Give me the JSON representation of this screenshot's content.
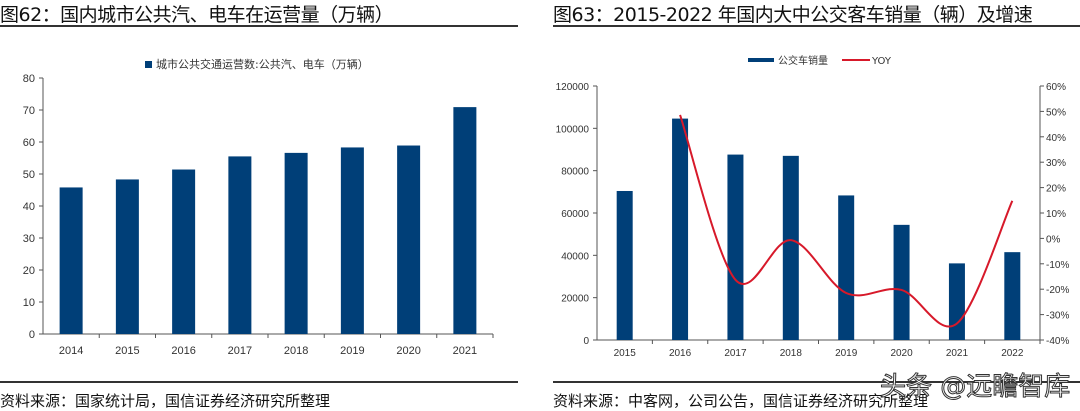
{
  "left": {
    "title": "图62：国内城市公共汽、电车在运营量（万辆）",
    "source": "资料来源：国家统计局，国信证券经济研究所整理"
  },
  "right": {
    "title": "图63：2015-2022 年国内大中公交客车销量（辆）及增速",
    "source": "资料来源：中客网，公司公告，国信证券经济研究所整理"
  },
  "watermark": "头条 @远瞻智库",
  "colors": {
    "bar": "#003F78",
    "line": "#D7192A"
  },
  "chart_data": [
    {
      "type": "bar",
      "title": "",
      "legend": "城市公共交通运营数:公共汽、电车（万辆）",
      "legend_position": "top",
      "categories": [
        "2014",
        "2015",
        "2016",
        "2017",
        "2018",
        "2019",
        "2020",
        "2021"
      ],
      "values": [
        45.8,
        48.3,
        51.4,
        55.5,
        56.6,
        58.3,
        58.9,
        70.9
      ],
      "ylim": [
        0,
        80
      ],
      "yticks": [
        "0",
        "10",
        "20",
        "30",
        "40",
        "50",
        "60",
        "70",
        "80"
      ],
      "grid": false
    },
    {
      "type": "bar+line",
      "title": "",
      "legend_position": "top",
      "categories": [
        "2015",
        "2016",
        "2017",
        "2018",
        "2019",
        "2020",
        "2021",
        "2022"
      ],
      "series": [
        {
          "name": "公交车销量",
          "type": "bar",
          "axis": "left",
          "values": [
            70400,
            104600,
            87600,
            87000,
            68300,
            54400,
            36200,
            41500
          ]
        },
        {
          "name": "YOY",
          "type": "line",
          "axis": "right",
          "values": [
            null,
            48.6,
            -16.3,
            -0.7,
            -21.5,
            -20.3,
            -33.5,
            14.8
          ]
        }
      ],
      "ylim": [
        0,
        120000
      ],
      "yticks": [
        "0",
        "20000",
        "40000",
        "60000",
        "80000",
        "100000",
        "120000"
      ],
      "y2lim": [
        -40,
        60
      ],
      "y2ticks": [
        "-40%",
        "-30%",
        "-20%",
        "-10%",
        "0%",
        "10%",
        "20%",
        "30%",
        "40%",
        "50%",
        "60%"
      ],
      "grid": false
    }
  ]
}
